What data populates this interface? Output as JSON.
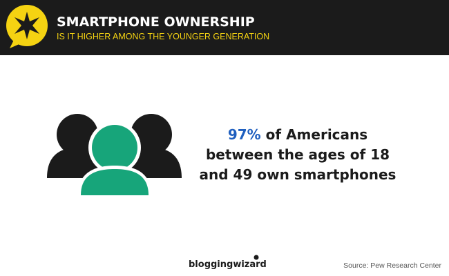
{
  "header": {
    "title": "SMARTPHONE OWNERSHIP",
    "subtitle": "IS IT HIGHER AMONG THE YOUNGER GENERATION"
  },
  "stat": {
    "highlight": "97%",
    "lines": [
      "of Americans",
      "between the ages of 18",
      "and 49 own smartphones"
    ]
  },
  "footer": {
    "brand": "bloggingwizard",
    "source": "Source: Pew Research Center"
  }
}
